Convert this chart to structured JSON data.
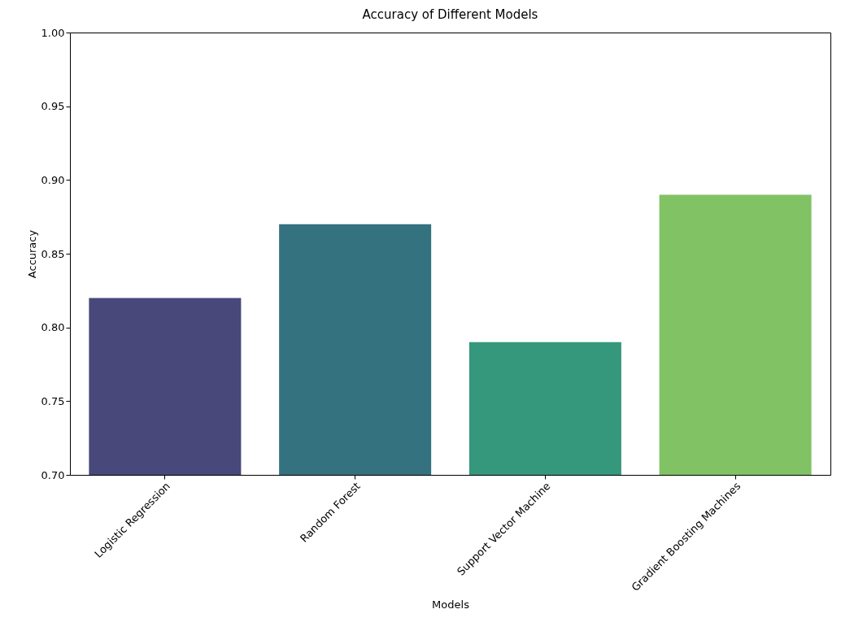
{
  "chart_data": {
    "type": "bar",
    "title": "Accuracy of Different Models",
    "xlabel": "Models",
    "ylabel": "Accuracy",
    "categories": [
      "Logistic Regression",
      "Random Forest",
      "Support Vector Machine",
      "Gradient Boosting Machines"
    ],
    "values": [
      0.82,
      0.87,
      0.79,
      0.89
    ],
    "colors": [
      "#48487a",
      "#357280",
      "#35977c",
      "#80c264"
    ],
    "ylim": [
      0.7,
      1.0
    ],
    "yticks": [
      {
        "value": 0.7,
        "label": "0.70"
      },
      {
        "value": 0.75,
        "label": "0.75"
      },
      {
        "value": 0.8,
        "label": "0.80"
      },
      {
        "value": 0.85,
        "label": "0.85"
      },
      {
        "value": 0.9,
        "label": "0.90"
      },
      {
        "value": 0.95,
        "label": "0.95"
      },
      {
        "value": 1.0,
        "label": "1.00"
      }
    ],
    "grid": false,
    "legend": false
  }
}
